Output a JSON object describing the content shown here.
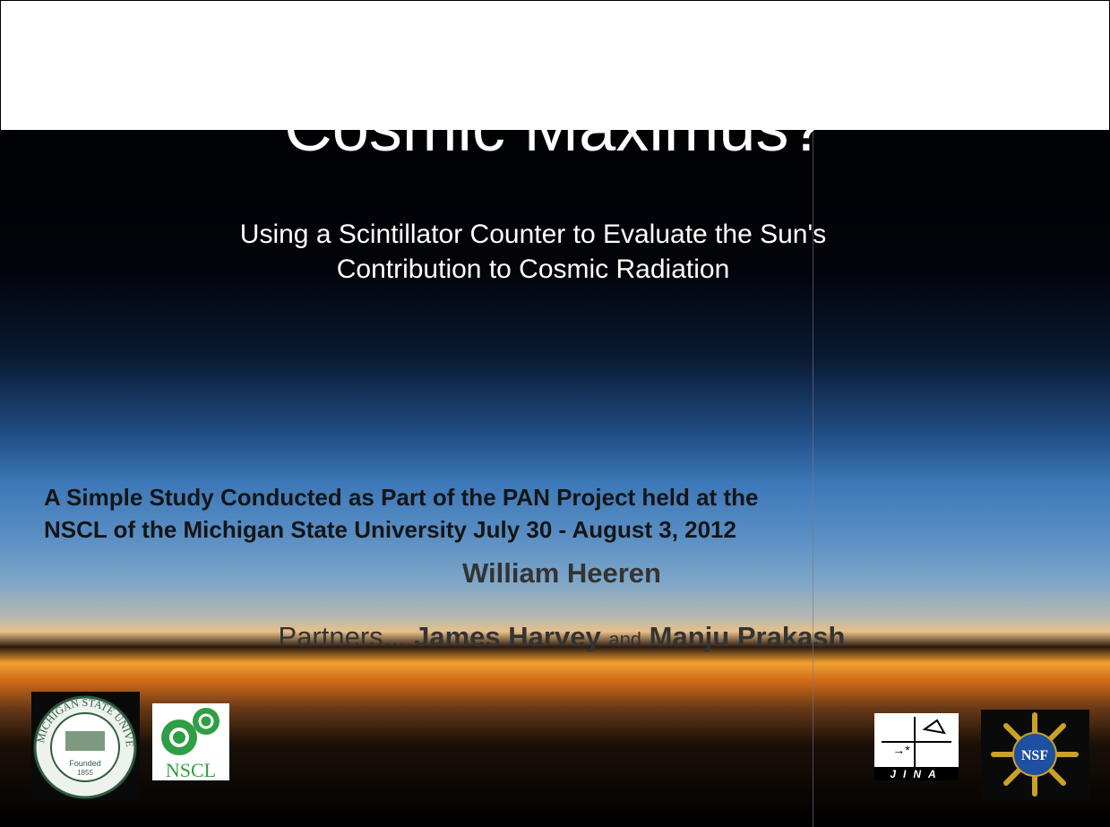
{
  "title": "Cosmic Maximus?",
  "subtitle": [
    "Using a Scintillator Counter to Evaluate the Sun's",
    "Contribution to Cosmic Radiation"
  ],
  "study": [
    "A Simple Study Conducted as Part of the PAN Project held at the",
    "NSCL of the Michigan State University July 30 - August 3, 2012"
  ],
  "author": "William Heeren",
  "partners": {
    "prefix": "Partners...",
    "name1": "James Harvey",
    "conjunction": "and",
    "name2": "Manju Prakash"
  },
  "logos": {
    "msu_name": "MICHIGAN STATE UNIVERSITY",
    "msu_founded": "Founded",
    "msu_year": "1855",
    "nscl": "NSCL",
    "jina": "JINA",
    "nsf": "NSF"
  }
}
